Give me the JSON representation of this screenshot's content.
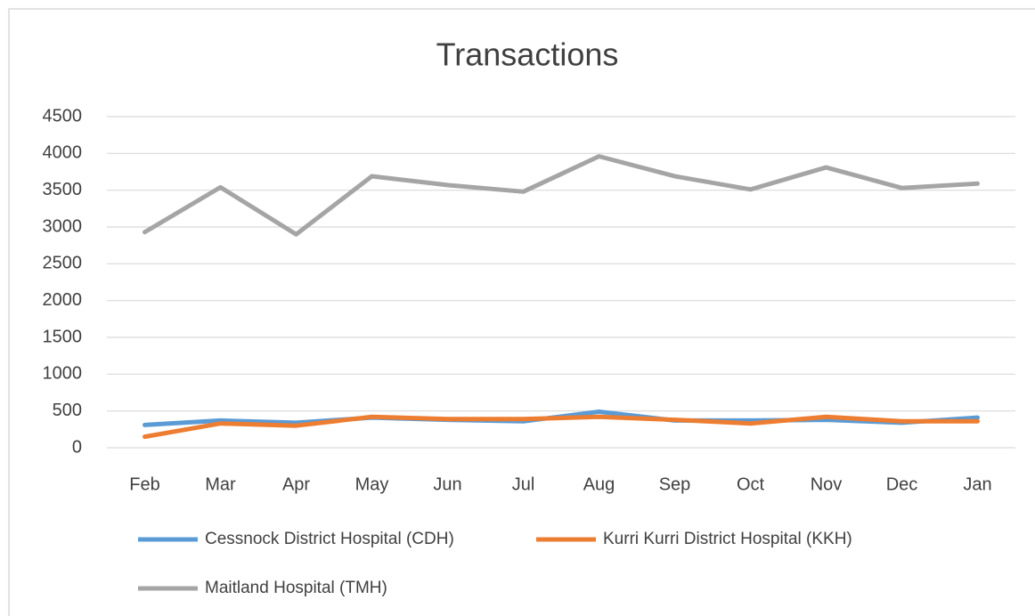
{
  "chart_data": {
    "type": "line",
    "title": "Transactions",
    "categories": [
      "Feb",
      "Mar",
      "Apr",
      "May",
      "Jun",
      "Jul",
      "Aug",
      "Sep",
      "Oct",
      "Nov",
      "Dec",
      "Jan"
    ],
    "series": [
      {
        "name": "Cessnock District Hospital (CDH)",
        "color": "#5b9bd5",
        "values": [
          310,
          370,
          340,
          410,
          380,
          360,
          490,
          370,
          370,
          380,
          340,
          410
        ]
      },
      {
        "name": "Kurri Kurri District Hospital (KKH)",
        "color": "#ed7d31",
        "values": [
          150,
          330,
          300,
          420,
          390,
          390,
          420,
          380,
          330,
          420,
          360,
          360
        ]
      },
      {
        "name": "Maitland Hospital (TMH)",
        "color": "#a5a5a5",
        "values": [
          2930,
          3540,
          2900,
          3690,
          3570,
          3480,
          3960,
          3690,
          3510,
          3810,
          3530,
          3590
        ]
      }
    ],
    "ylim": [
      0,
      4500
    ],
    "yticks": [
      0,
      500,
      1000,
      1500,
      2000,
      2500,
      3000,
      3500,
      4000,
      4500
    ],
    "grid": true
  }
}
